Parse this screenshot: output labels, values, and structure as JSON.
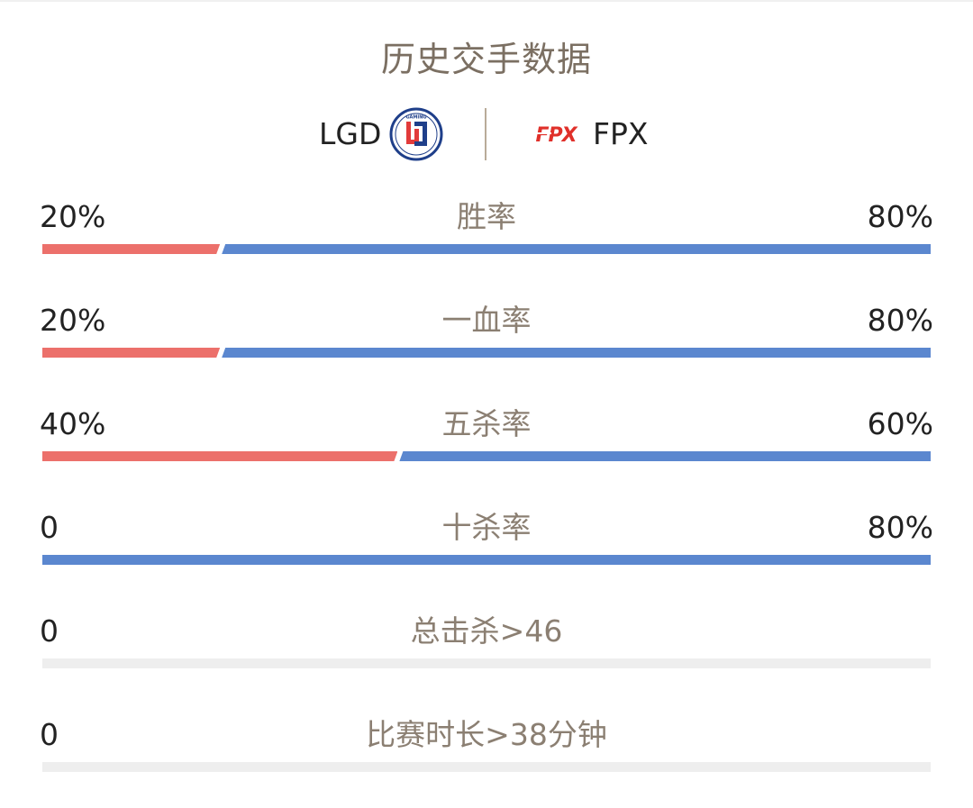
{
  "title": "历史交手数据",
  "teams": {
    "left": {
      "name": "LGD",
      "logo_icon": "lgd-gaming-logo",
      "logo_text": "GAMING"
    },
    "right": {
      "name": "FPX",
      "logo_icon": "fpx-logo",
      "logo_text": "FPX"
    }
  },
  "colors": {
    "left": "#ec706b",
    "right": "#5b87cf",
    "empty": "#eeeeee",
    "label": "#8b7f72"
  },
  "stats": [
    {
      "label": "胜率",
      "left_value": "20%",
      "right_value": "80%",
      "left_fraction": 0.2,
      "right_fraction": 0.8
    },
    {
      "label": "一血率",
      "left_value": "20%",
      "right_value": "80%",
      "left_fraction": 0.2,
      "right_fraction": 0.8
    },
    {
      "label": "五杀率",
      "left_value": "40%",
      "right_value": "60%",
      "left_fraction": 0.4,
      "right_fraction": 0.6
    },
    {
      "label": "十杀率",
      "left_value": "0",
      "right_value": "80%",
      "left_fraction": 0.0,
      "right_fraction": 1.0
    },
    {
      "label": "总击杀>46",
      "left_value": "0",
      "right_value": "",
      "left_fraction": 0.0,
      "right_fraction": 0.0
    },
    {
      "label": "比赛时长>38分钟",
      "left_value": "0",
      "right_value": "",
      "left_fraction": 0.0,
      "right_fraction": 0.0
    }
  ]
}
